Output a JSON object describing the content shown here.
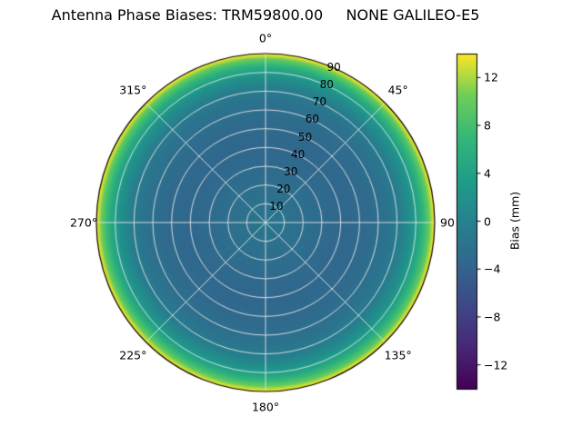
{
  "chart_data": {
    "type": "heatmap",
    "projection": "polar",
    "title": "Antenna Phase Biases: TRM59800.00     NONE GALILEO-E5",
    "colormap": "viridis",
    "grid": true,
    "angular_ticks": [
      {
        "angle": 0,
        "label": "0°"
      },
      {
        "angle": 45,
        "label": "45°"
      },
      {
        "angle": 90,
        "label": "90"
      },
      {
        "angle": 135,
        "label": "135°"
      },
      {
        "angle": 180,
        "label": "180°"
      },
      {
        "angle": 225,
        "label": "225°"
      },
      {
        "angle": 270,
        "label": "270°"
      },
      {
        "angle": 315,
        "label": "315°"
      }
    ],
    "radial_ticks": [
      10,
      20,
      30,
      40,
      50,
      60,
      70,
      80,
      90
    ],
    "radial_label_angle_deg": 22.5,
    "r_max": 90,
    "profile": {
      "comment_zenith_deg": [
        0,
        20,
        40,
        55,
        65,
        72,
        78,
        83,
        87,
        90
      ],
      "zenith": [
        0,
        20,
        40,
        55,
        65,
        72,
        78,
        83,
        87,
        90
      ],
      "bias_mm": [
        -1.5,
        -2.5,
        -3.5,
        -3.0,
        -2.0,
        -0.5,
        2.0,
        5.5,
        9.5,
        14.0
      ]
    },
    "colorbar": {
      "label": "Bias (mm)",
      "vmin": -14,
      "vmax": 14,
      "ticks": [
        12,
        8,
        4,
        0,
        -4,
        -8,
        -12
      ],
      "tick_labels": [
        "12",
        "8",
        "4",
        "0",
        "−4",
        "−8",
        "−12"
      ]
    },
    "colors": {
      "grid": "#e6e6e6",
      "axis_edge": "#000000",
      "background": "#ffffff",
      "viridis_min": "#440154",
      "viridis_mid": "#26828e",
      "viridis_max": "#fde725"
    }
  }
}
